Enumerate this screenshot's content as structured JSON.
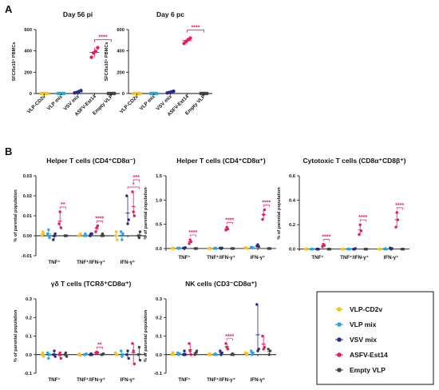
{
  "panels": [
    {
      "label": "A"
    },
    {
      "label": "B"
    }
  ],
  "legend": {
    "items": [
      {
        "name": "VLP-CD2v",
        "color": "#f5c21b"
      },
      {
        "name": "VLP mix",
        "color": "#2aa6d9"
      },
      {
        "name": "VSV mix",
        "color": "#2a2a8c"
      },
      {
        "name": "ASFV-Est14",
        "color": "#e8195e"
      },
      {
        "name": "Empty VLP",
        "color": "#444444"
      }
    ]
  },
  "chart_data": [
    {
      "type": "scatter",
      "panel": "A",
      "title": "Day 56 pi",
      "ylabel": "SFC/5x10⁵ PBMCs",
      "ylim": [
        0,
        600
      ],
      "yticks": [
        "0",
        "200",
        "400",
        "600"
      ],
      "categories": [
        "VLP-CD2v",
        "VLP mix",
        "VSV mix",
        "ASFV-Est14",
        "Empty VLP"
      ],
      "series": [
        {
          "name": "VLP-CD2v",
          "values": [
            0,
            0,
            0,
            0
          ]
        },
        {
          "name": "VLP mix",
          "values": [
            0,
            0,
            0,
            0
          ]
        },
        {
          "name": "VSV mix",
          "values": [
            5,
            10,
            18,
            28
          ]
        },
        {
          "name": "ASFV-Est14",
          "values": [
            340,
            380,
            395,
            430
          ]
        },
        {
          "name": "Empty VLP",
          "values": [
            0,
            0,
            0,
            0
          ]
        }
      ],
      "significance": [
        {
          "from": 3,
          "to": 4,
          "label": "****"
        }
      ]
    },
    {
      "type": "scatter",
      "panel": "A",
      "title": "Day 6 pc",
      "ylabel": "SFC/5x10⁵ PBMCs",
      "ylim": [
        0,
        600
      ],
      "yticks": [
        "0",
        "200",
        "400",
        "600"
      ],
      "categories": [
        "VLP-CD2v",
        "VLP mix",
        "VSV mix",
        "ASFV-Est14",
        "Empty VLP"
      ],
      "series": [
        {
          "name": "VLP-CD2v",
          "values": [
            0,
            0,
            0,
            0
          ]
        },
        {
          "name": "VLP mix",
          "values": [
            0,
            0,
            0,
            0
          ]
        },
        {
          "name": "VSV mix",
          "values": [
            5,
            10,
            15,
            22
          ]
        },
        {
          "name": "ASFV-Est14",
          "values": [
            470,
            490,
            505,
            520
          ]
        },
        {
          "name": "Empty VLP",
          "values": [
            0,
            0,
            0,
            0
          ]
        }
      ],
      "significance": [
        {
          "from": 3,
          "to": 4,
          "label": "****"
        }
      ]
    },
    {
      "type": "scatter",
      "panel": "B",
      "title": "Helper T cells (CD4⁺CD8α⁻)",
      "ylabel": "% of parental population",
      "ylim": [
        -0.01,
        0.03
      ],
      "yticks": [
        "-0.01",
        "0.00",
        "0.01",
        "0.02",
        "0.03"
      ],
      "categories": [
        "TNF⁺",
        "TNF⁺/IFN-γ⁺",
        "IFN-γ⁺"
      ],
      "series": [
        {
          "name": "VLP-CD2v",
          "values": [
            [
              0.0,
              0.002,
              0.001
            ],
            [
              0.0,
              0.0,
              0.001
            ],
            [
              0.0,
              0.002,
              -0.002
            ]
          ]
        },
        {
          "name": "VLP mix",
          "values": [
            [
              0.001,
              0.003,
              -0.001
            ],
            [
              0.0,
              0.001,
              0.0
            ],
            [
              0.002,
              -0.002,
              0.001
            ]
          ]
        },
        {
          "name": "VSV mix",
          "values": [
            [
              -0.002,
              0.0,
              0.001
            ],
            [
              0.0,
              0.001,
              0.001
            ],
            [
              0.02,
              0.006,
              0.008
            ]
          ]
        },
        {
          "name": "ASFV-Est14",
          "values": [
            [
              0.006,
              0.012,
              0.004
            ],
            [
              0.002,
              0.004,
              0.005
            ],
            [
              0.022,
              0.012,
              0.01
            ]
          ]
        },
        {
          "name": "Empty VLP",
          "values": [
            [
              0.0,
              0.0,
              0.0
            ],
            [
              0.0,
              0.001,
              0.0
            ],
            [
              0.0,
              -0.001,
              0.002
            ]
          ]
        }
      ],
      "significance": [
        {
          "cat": 0,
          "from": 3,
          "to": 4,
          "label": "**"
        },
        {
          "cat": 1,
          "from": 3,
          "to": 4,
          "label": "****"
        },
        {
          "cat": 2,
          "from": 2,
          "to": 4,
          "label": "*"
        },
        {
          "cat": 2,
          "from": 3,
          "to": 4,
          "label": "***"
        }
      ]
    },
    {
      "type": "scatter",
      "panel": "B",
      "title": "Helper T cells (CD4⁺CD8α⁺)",
      "ylabel": "% of parental population",
      "ylim": [
        -0.05,
        1.5
      ],
      "yticks": [
        "0.0",
        "0.5",
        "1.0",
        "1.5"
      ],
      "categories": [
        "TNF⁺",
        "TNF⁺/IFN-γ⁺",
        "IFN-γ⁺"
      ],
      "series": [
        {
          "name": "VLP-CD2v",
          "values": [
            [
              0.0,
              0.01,
              0.0
            ],
            [
              0.0,
              0.01,
              0.0
            ],
            [
              0.02,
              0.01,
              0.0
            ]
          ]
        },
        {
          "name": "VLP mix",
          "values": [
            [
              0.01,
              0.0,
              0.01
            ],
            [
              0.0,
              0.01,
              0.0
            ],
            [
              0.03,
              0.01,
              0.02
            ]
          ]
        },
        {
          "name": "VSV mix",
          "values": [
            [
              0.01,
              0.0,
              0.02
            ],
            [
              0.01,
              0.0,
              0.01
            ],
            [
              0.05,
              0.08,
              0.04
            ]
          ]
        },
        {
          "name": "ASFV-Est14",
          "values": [
            [
              0.1,
              0.18,
              0.14
            ],
            [
              0.38,
              0.44,
              0.4
            ],
            [
              0.6,
              0.7,
              0.8
            ]
          ]
        },
        {
          "name": "Empty VLP",
          "values": [
            [
              0.0,
              0.0,
              0.0
            ],
            [
              0.0,
              0.0,
              0.0
            ],
            [
              0.0,
              0.0,
              0.0
            ]
          ]
        }
      ],
      "significance": [
        {
          "cat": 0,
          "from": 3,
          "to": 4,
          "label": "****"
        },
        {
          "cat": 1,
          "from": 3,
          "to": 4,
          "label": "****"
        },
        {
          "cat": 2,
          "from": 3,
          "to": 4,
          "label": "****"
        }
      ]
    },
    {
      "type": "scatter",
      "panel": "B",
      "title": "Cytotoxic T cells (CD8α⁺CD8β⁺)",
      "ylabel": "% of parental population",
      "ylim": [
        -0.015,
        0.6
      ],
      "yticks": [
        "0.0",
        "0.2",
        "0.4",
        "0.6"
      ],
      "categories": [
        "TNF⁺",
        "TNF⁺/IFN-γ⁺",
        "IFN-γ⁺"
      ],
      "series": [
        {
          "name": "VLP-CD2v",
          "values": [
            [
              0.0,
              0.0,
              0.0
            ],
            [
              0.0,
              0.0,
              0.0
            ],
            [
              0.0,
              0.0,
              0.0
            ]
          ]
        },
        {
          "name": "VLP mix",
          "values": [
            [
              0.0,
              0.002,
              0.0
            ],
            [
              0.0,
              0.002,
              0.0
            ],
            [
              0.0,
              0.005,
              0.0
            ]
          ]
        },
        {
          "name": "VSV mix",
          "values": [
            [
              0.0,
              0.0,
              0.0
            ],
            [
              0.0,
              0.0,
              0.005
            ],
            [
              0.01,
              0.0,
              0.005
            ]
          ]
        },
        {
          "name": "ASFV-Est14",
          "values": [
            [
              0.02,
              0.04,
              0.03
            ],
            [
              0.12,
              0.2,
              0.15
            ],
            [
              0.18,
              0.3,
              0.24
            ]
          ]
        },
        {
          "name": "Empty VLP",
          "values": [
            [
              0.0,
              0.0,
              0.0
            ],
            [
              0.0,
              0.0,
              0.0
            ],
            [
              0.0,
              0.0,
              0.0
            ]
          ]
        }
      ],
      "significance": [
        {
          "cat": 0,
          "from": 3,
          "to": 4,
          "label": "****"
        },
        {
          "cat": 1,
          "from": 3,
          "to": 4,
          "label": "****"
        },
        {
          "cat": 2,
          "from": 3,
          "to": 4,
          "label": "****"
        }
      ]
    },
    {
      "type": "scatter",
      "panel": "B",
      "title": "γδ T cells (TCRδ⁺CD8α⁺)",
      "ylabel": "% of parental population",
      "ylim": [
        -0.1,
        0.3
      ],
      "yticks": [
        "-0.1",
        "0.0",
        "0.1",
        "0.2",
        "0.3"
      ],
      "categories": [
        "TNF⁺",
        "TNF⁺/IFN-γ⁺",
        "IFN-γ⁺"
      ],
      "series": [
        {
          "name": "VLP-CD2v",
          "values": [
            [
              0.0,
              0.01,
              -0.01
            ],
            [
              0.0,
              0.005,
              -0.005
            ],
            [
              0.01,
              0.0,
              0.0
            ]
          ]
        },
        {
          "name": "VLP mix",
          "values": [
            [
              0.01,
              -0.02,
              0.0
            ],
            [
              0.0,
              0.0,
              0.005
            ],
            [
              0.02,
              -0.01,
              0.0
            ]
          ]
        },
        {
          "name": "VSV mix",
          "values": [
            [
              0.0,
              0.02,
              -0.01
            ],
            [
              0.0,
              0.005,
              0.0
            ],
            [
              0.0,
              0.02,
              -0.02
            ]
          ]
        },
        {
          "name": "ASFV-Est14",
          "values": [
            [
              0.0,
              0.01,
              -0.02
            ],
            [
              0.01,
              0.015,
              0.01
            ],
            [
              0.06,
              0.02,
              -0.05
            ]
          ]
        },
        {
          "name": "Empty VLP",
          "values": [
            [
              0.0,
              0.01,
              -0.01
            ],
            [
              0.0,
              0.0,
              0.005
            ],
            [
              0.0,
              0.04,
              -0.03
            ]
          ]
        }
      ],
      "significance": [
        {
          "cat": 1,
          "from": 3,
          "to": 4,
          "label": "**"
        }
      ]
    },
    {
      "type": "scatter",
      "panel": "B",
      "title": "NK cells (CD3⁻CD8α⁺)",
      "ylabel": "% of parental population",
      "ylim": [
        -0.1,
        0.3
      ],
      "yticks": [
        "-0.1",
        "0.0",
        "0.1",
        "0.2",
        "0.3"
      ],
      "categories": [
        "TNF⁺",
        "TNF⁺/IFN-γ⁺",
        "IFN-γ⁺"
      ],
      "series": [
        {
          "name": "VLP-CD2v",
          "values": [
            [
              0.0,
              0.01,
              0.0
            ],
            [
              0.0,
              0.005,
              0.0
            ],
            [
              0.01,
              0.0,
              0.005
            ]
          ]
        },
        {
          "name": "VLP mix",
          "values": [
            [
              0.01,
              0.0,
              0.005
            ],
            [
              0.0,
              0.005,
              0.0
            ],
            [
              0.02,
              0.0,
              0.01
            ]
          ]
        },
        {
          "name": "VSV mix",
          "values": [
            [
              0.0,
              0.02,
              0.0
            ],
            [
              0.02,
              0.0,
              0.01
            ],
            [
              0.27,
              0.02,
              0.03
            ]
          ]
        },
        {
          "name": "ASFV-Est14",
          "values": [
            [
              0.06,
              0.02,
              0.0
            ],
            [
              0.06,
              0.04,
              0.03
            ],
            [
              0.1,
              0.03,
              0.04
            ]
          ]
        },
        {
          "name": "Empty VLP",
          "values": [
            [
              0.0,
              0.01,
              0.02
            ],
            [
              0.0,
              0.005,
              0.0
            ],
            [
              0.03,
              0.0,
              0.02
            ]
          ]
        }
      ],
      "significance": [
        {
          "cat": 1,
          "from": 3,
          "to": 4,
          "label": "****"
        }
      ]
    }
  ]
}
